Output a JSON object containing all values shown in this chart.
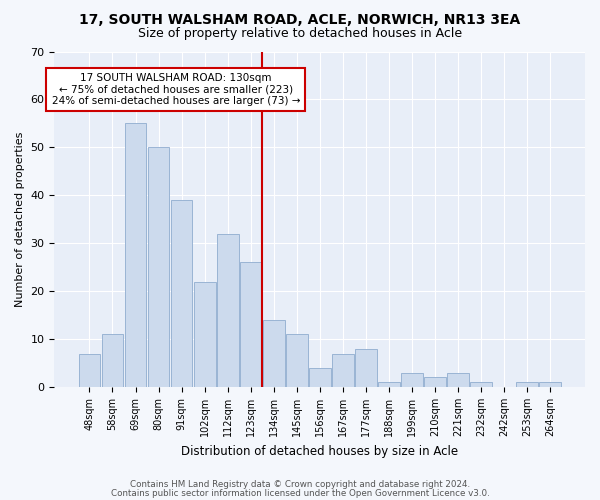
{
  "title1": "17, SOUTH WALSHAM ROAD, ACLE, NORWICH, NR13 3EA",
  "title2": "Size of property relative to detached houses in Acle",
  "xlabel": "Distribution of detached houses by size in Acle",
  "ylabel": "Number of detached properties",
  "bar_labels": [
    "48sqm",
    "58sqm",
    "69sqm",
    "80sqm",
    "91sqm",
    "102sqm",
    "112sqm",
    "123sqm",
    "134sqm",
    "145sqm",
    "156sqm",
    "167sqm",
    "177sqm",
    "188sqm",
    "199sqm",
    "210sqm",
    "221sqm",
    "232sqm",
    "242sqm",
    "253sqm",
    "264sqm"
  ],
  "bar_values": [
    7,
    11,
    55,
    50,
    39,
    22,
    32,
    26,
    14,
    11,
    4,
    7,
    8,
    1,
    3,
    2,
    3,
    1,
    0,
    1,
    1
  ],
  "bar_color": "#ccdaed",
  "bar_edgecolor": "#9ab4d4",
  "ref_line_color": "#cc0000",
  "annotation_box_edgecolor": "#cc0000",
  "annotation_box_facecolor": "#ffffff",
  "annotation_line0": "17 SOUTH WALSHAM ROAD: 130sqm",
  "annotation_line1": "← 75% of detached houses are smaller (223)",
  "annotation_line2": "24% of semi-detached houses are larger (73) →",
  "ylim": [
    0,
    70
  ],
  "yticks": [
    0,
    10,
    20,
    30,
    40,
    50,
    60,
    70
  ],
  "footer1": "Contains HM Land Registry data © Crown copyright and database right 2024.",
  "footer2": "Contains public sector information licensed under the Open Government Licence v3.0.",
  "fig_background": "#f4f7fc",
  "plot_background": "#e8eef8",
  "grid_color": "#ffffff",
  "title1_fontsize": 10,
  "title2_fontsize": 9
}
